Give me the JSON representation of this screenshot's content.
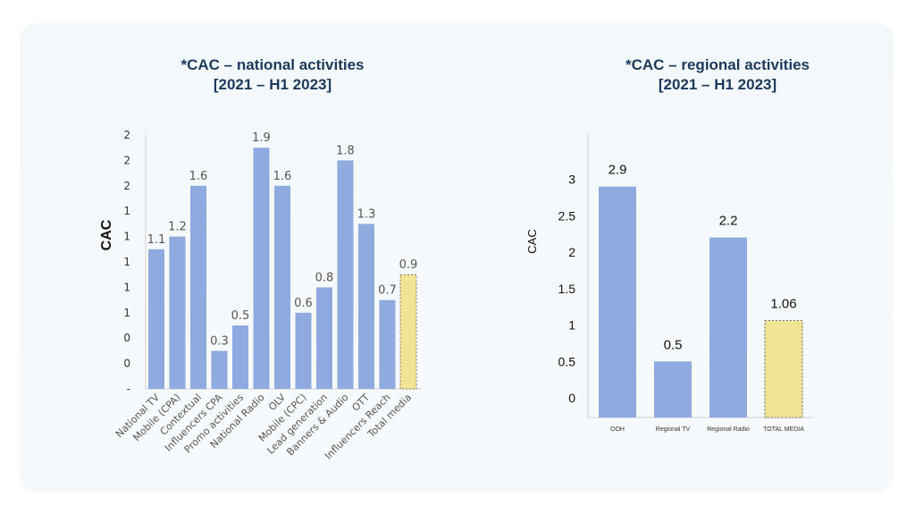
{
  "chart_data": [
    {
      "type": "bar",
      "title_line1": "*CAC – national activities",
      "title_line2": "[2021 – H1 2023]",
      "ylabel": "CAC",
      "y_tick_labels": [
        "-",
        "0",
        "0",
        "1",
        "1",
        "1",
        "1",
        "1",
        "2",
        "2",
        "2"
      ],
      "ylim": [
        0,
        2.0
      ],
      "categories": [
        "National TV",
        "Mobile (CPA)",
        "Contextual",
        "Influencers CPA",
        "Promo activities",
        "National Radio",
        "OLV",
        "Mobile (CPC)",
        "Lead generation",
        "Banners & Audio",
        "OTT",
        "Influencers Reach",
        "Total media"
      ],
      "values": [
        1.1,
        1.2,
        1.6,
        0.3,
        0.5,
        1.9,
        1.6,
        0.6,
        0.8,
        1.8,
        1.3,
        0.7,
        0.9
      ],
      "value_labels": [
        "1.1",
        "1.2",
        "1.6",
        "0.3",
        "0.5",
        "1.9",
        "1.6",
        "0.6",
        "0.8",
        "1.8",
        "1.3",
        "0.7",
        "0.9"
      ],
      "highlight_index": 12,
      "bar_color": "#8eaadf",
      "highlight_color": "#f1e495"
    },
    {
      "type": "bar",
      "title_line1": "*CAC – regional activities",
      "title_line2": "[2021 – H1 2023]",
      "ylabel": "CAC",
      "y_ticks": [
        0,
        0.5,
        1,
        1.5,
        2,
        2.5,
        3
      ],
      "y_tick_labels": [
        "0",
        "0.5",
        "1",
        "1.5",
        "2",
        "2.5",
        "3"
      ],
      "ylim": [
        0,
        3.0
      ],
      "categories": [
        "OOH",
        "Regional TV",
        "Regional Radio",
        "TOTAL MEDIA"
      ],
      "values": [
        2.9,
        0.5,
        2.2,
        1.06
      ],
      "value_labels": [
        "2.9",
        "0.5",
        "2.2",
        "1.06"
      ],
      "highlight_index": 3,
      "bar_color": "#8eaadf",
      "highlight_color": "#f1e495"
    }
  ]
}
